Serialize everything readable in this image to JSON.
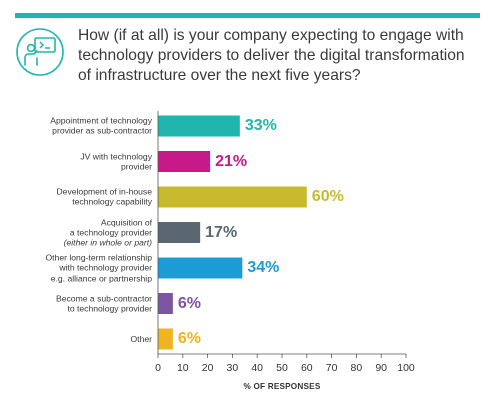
{
  "question": {
    "lines": [
      "How (if at all) is your company expecting to engage with",
      "technology providers to deliver the digital transformation",
      "of infrastructure over the next five years?"
    ]
  },
  "icon": {
    "name": "person-presentation-icon",
    "color": "#22b5ad"
  },
  "chart_data": {
    "type": "bar",
    "orientation": "horizontal",
    "title": "How (if at all) is your company expecting to engage with technology providers to deliver the digital transformation of infrastructure over the next five years?",
    "xlabel": "% OF RESPONSES",
    "ylabel": "",
    "xlim": [
      0,
      100
    ],
    "x_ticks": [
      0,
      10,
      20,
      30,
      40,
      50,
      60,
      70,
      80,
      90,
      100
    ],
    "grid": false,
    "legend": "none",
    "categories": [
      {
        "lines": [
          {
            "text": "Appointment of technology"
          },
          {
            "text": "provider as sub-contractor"
          }
        ]
      },
      {
        "lines": [
          {
            "text": "JV with technology"
          },
          {
            "text": "provider"
          }
        ]
      },
      {
        "lines": [
          {
            "text": "Development of in-house"
          },
          {
            "text": "technology capability"
          }
        ]
      },
      {
        "lines": [
          {
            "text": "Acquisition of"
          },
          {
            "text": "a technology provider"
          },
          {
            "text": "(either in whole or part)",
            "italic": true
          }
        ]
      },
      {
        "lines": [
          {
            "text": "Other long-term relationship"
          },
          {
            "text": "with technology provider"
          },
          {
            "text": "e.g. alliance or partnership"
          }
        ]
      },
      {
        "lines": [
          {
            "text": "Become a sub-contractor"
          },
          {
            "text": "to technology provider"
          }
        ]
      },
      {
        "lines": [
          {
            "text": "Other"
          }
        ]
      }
    ],
    "values": [
      33,
      21,
      60,
      17,
      34,
      6,
      6
    ],
    "value_labels": [
      "33%",
      "21%",
      "60%",
      "17%",
      "34%",
      "6%",
      "6%"
    ],
    "colors": [
      "#22b5ad",
      "#c8198a",
      "#c7bb2d",
      "#5a6770",
      "#1d9bd7",
      "#7b55a3",
      "#f0b323"
    ]
  }
}
